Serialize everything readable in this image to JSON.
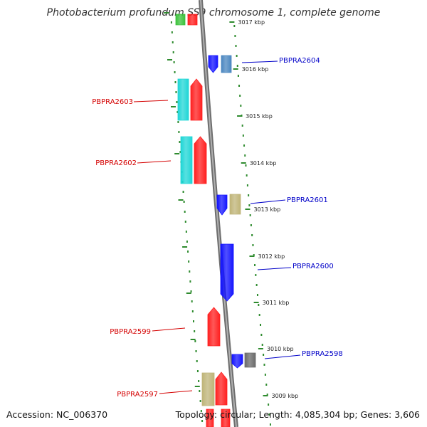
{
  "title": "Photobacterium profundum SS9 chromosome 1, complete genome",
  "footer": {
    "accession": "Accession: NC_006370",
    "summary": "Topology: circular; Length: 4,085,304 bp; Genes: 3,606"
  },
  "colors": {
    "backbone": "#8a8a8a",
    "dotted_track": "#2e8b2e",
    "forward_label": "#d40000",
    "reverse_label": "#0000c8",
    "gene_red": "#ff2020",
    "gene_cyan": "#1fd6d6",
    "gene_blue": "#1515ff",
    "gene_steelblue": "#4a86c0",
    "gene_khaki": "#bfb478",
    "gene_gray": "#6b6b6b",
    "gene_green": "#3cc23c"
  },
  "scale_labels": [
    "3017 kbp",
    "3016 kbp",
    "3015 kbp",
    "3014 kbp",
    "3013 kbp",
    "3012 kbp",
    "3011 kbp",
    "3010 kbp",
    "3009 kbp"
  ],
  "gene_labels": [
    {
      "text": "PBPRA2604",
      "strand": "reverse"
    },
    {
      "text": "PBPRA2603",
      "strand": "forward"
    },
    {
      "text": "PBPRA2602",
      "strand": "forward"
    },
    {
      "text": "PBPRA2601",
      "strand": "reverse"
    },
    {
      "text": "PBPRA2600",
      "strand": "reverse"
    },
    {
      "text": "PBPRA2599",
      "strand": "forward"
    },
    {
      "text": "PBPRA2598",
      "strand": "reverse"
    },
    {
      "text": "PBPRA2597",
      "strand": "forward"
    }
  ]
}
